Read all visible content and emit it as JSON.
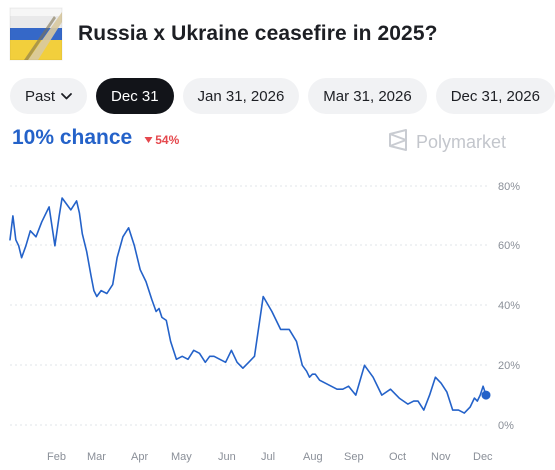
{
  "header": {
    "title": "Russia x Ukraine ceasefire in 2025?"
  },
  "tabs": [
    {
      "label": "Past",
      "active": false,
      "has_chevron": true
    },
    {
      "label": "Dec 31",
      "active": true,
      "has_chevron": false
    },
    {
      "label": "Jan 31, 2026",
      "active": false,
      "has_chevron": false
    },
    {
      "label": "Mar 31, 2026",
      "active": false,
      "has_chevron": false
    },
    {
      "label": "Dec 31, 2026",
      "active": false,
      "has_chevron": false
    }
  ],
  "market": {
    "chance_label": "10% chance",
    "change_label": "54%",
    "change_direction": "down",
    "brand": "Polymarket"
  },
  "colors": {
    "accent": "#2462c9",
    "negative": "#e5484d",
    "active_tab": "#121419"
  },
  "chart_data": {
    "type": "line",
    "y_ticks": [
      "80%",
      "60%",
      "40%",
      "20%",
      "0%"
    ],
    "x_ticks": [
      "Feb",
      "Mar",
      "Apr",
      "May",
      "Jun",
      "Jul",
      "Aug",
      "Sep",
      "Oct",
      "Nov",
      "Dec"
    ],
    "ylim": [
      0,
      80
    ],
    "grid": true,
    "series": [
      {
        "x": [
          "2025-01-14",
          "2025-01-16",
          "2025-01-18",
          "2025-01-20",
          "2025-01-22",
          "2025-01-25",
          "2025-01-28",
          "2025-02-01",
          "2025-02-05",
          "2025-02-10",
          "2025-02-14",
          "2025-02-17",
          "2025-02-19",
          "2025-02-22",
          "2025-02-25",
          "2025-03-01",
          "2025-03-03",
          "2025-03-05",
          "2025-03-08",
          "2025-03-11",
          "2025-03-13",
          "2025-03-15",
          "2025-03-18",
          "2025-03-22",
          "2025-03-26",
          "2025-03-29",
          "2025-04-02",
          "2025-04-06",
          "2025-04-10",
          "2025-04-14",
          "2025-04-18",
          "2025-04-22",
          "2025-04-25",
          "2025-04-27",
          "2025-04-29",
          "2025-05-02",
          "2025-05-05",
          "2025-05-09",
          "2025-05-13",
          "2025-05-17",
          "2025-05-21",
          "2025-05-25",
          "2025-05-29",
          "2025-06-01",
          "2025-06-04",
          "2025-06-08",
          "2025-06-12",
          "2025-06-16",
          "2025-06-20",
          "2025-06-24",
          "2025-06-28",
          "2025-07-02",
          "2025-07-08",
          "2025-07-14",
          "2025-07-20",
          "2025-07-26",
          "2025-07-31",
          "2025-08-04",
          "2025-08-07",
          "2025-08-09",
          "2025-08-11",
          "2025-08-13",
          "2025-08-16",
          "2025-08-20",
          "2025-08-24",
          "2025-08-28",
          "2025-09-01",
          "2025-09-05",
          "2025-09-10",
          "2025-09-16",
          "2025-09-22",
          "2025-09-28",
          "2025-10-04",
          "2025-10-10",
          "2025-10-16",
          "2025-10-20",
          "2025-10-23",
          "2025-10-27",
          "2025-10-31",
          "2025-11-04",
          "2025-11-08",
          "2025-11-12",
          "2025-11-16",
          "2025-11-20",
          "2025-11-24",
          "2025-11-28",
          "2025-12-01",
          "2025-12-03",
          "2025-12-05",
          "2025-12-07",
          "2025-12-09"
        ],
        "values": [
          62,
          70,
          62,
          60,
          56,
          60,
          65,
          63,
          68,
          73,
          60,
          70,
          76,
          74,
          72,
          75,
          71,
          64,
          58,
          50,
          45,
          43,
          45,
          44,
          47,
          56,
          63,
          66,
          60,
          52,
          48,
          42,
          38,
          39,
          36,
          35,
          28,
          22,
          23,
          22,
          25,
          24,
          21,
          23,
          23,
          22,
          21,
          25,
          21,
          19,
          21,
          23,
          43,
          38,
          32,
          32,
          28,
          20,
          18,
          16,
          17,
          17,
          15,
          14,
          13,
          12,
          12,
          13,
          10,
          20,
          16,
          10,
          12,
          9,
          7,
          8,
          8,
          5,
          10,
          16,
          14,
          11,
          5,
          5,
          4,
          6,
          9,
          8,
          10,
          13,
          10
        ]
      }
    ]
  }
}
